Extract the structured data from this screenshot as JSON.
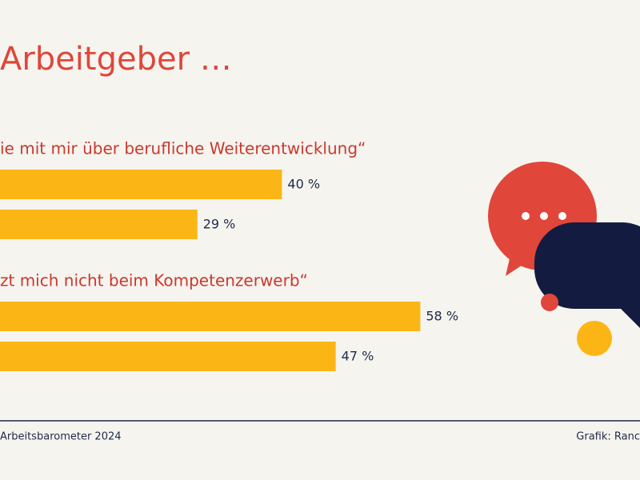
{
  "chart_data": {
    "type": "bar",
    "title": "Arbeitgeber …",
    "color": "#fbb615",
    "groups": [
      {
        "label": "ie mit mir über berufliche Weiterentwicklung“",
        "values": [
          40,
          29
        ],
        "value_labels": [
          "40 %",
          "29 %"
        ]
      },
      {
        "label": "zt mich nicht beim Kompetenzerwerb“",
        "values": [
          58,
          47
        ],
        "value_labels": [
          "58 %",
          "47 %"
        ]
      }
    ]
  },
  "footer": {
    "source": "Arbeitsbarometer 2024",
    "credit": "Grafik: Ranc"
  }
}
